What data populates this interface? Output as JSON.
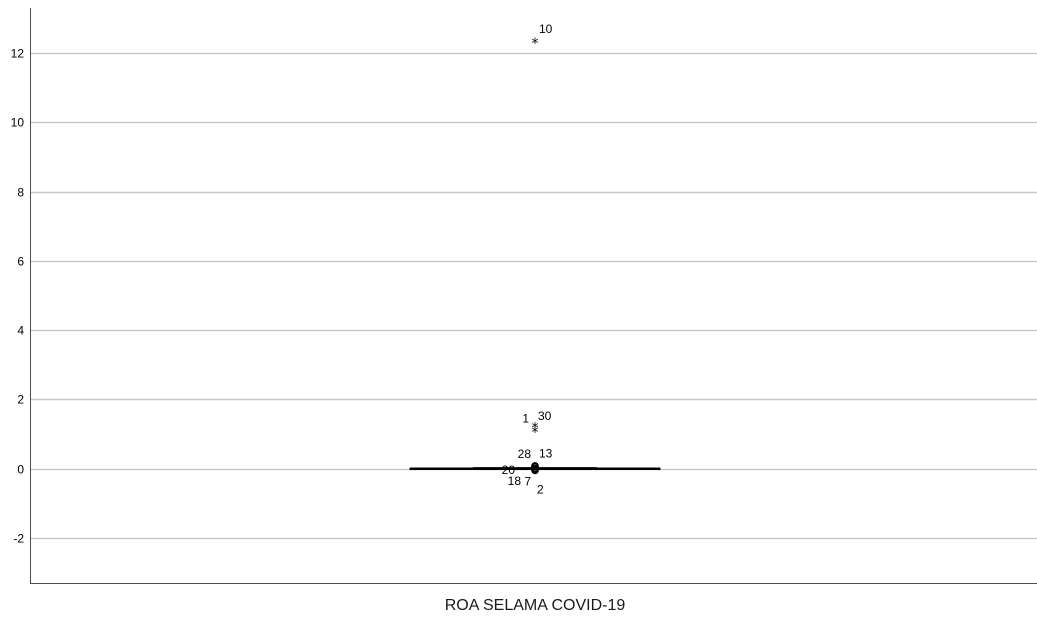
{
  "chart_data": {
    "type": "boxplot",
    "categories": [
      "ROA SELAMA COVID-19"
    ],
    "ylim": [
      -3.3,
      13.3
    ],
    "yticks": [
      -2,
      0,
      2,
      4,
      6,
      8,
      10,
      12
    ],
    "ytick_labels": [
      "-2",
      "0",
      "2",
      "4",
      "6",
      "8",
      "10",
      "12"
    ],
    "grid": true,
    "box": {
      "q1": -0.01,
      "median": 0.0,
      "q3": 0.01,
      "whisker_low": -0.02,
      "whisker_high": 0.03
    },
    "extreme_outliers": [
      {
        "case": "10",
        "value": 12.35
      },
      {
        "case": "1",
        "value": 1.25
      },
      {
        "case": "30",
        "value": 1.12
      }
    ],
    "outliers": [
      {
        "case": "28",
        "value": 0.08
      },
      {
        "case": "13",
        "value": 0.06
      },
      {
        "case": "20",
        "value": 0.02
      },
      {
        "case": "18",
        "value": -0.01
      },
      {
        "case": "7",
        "value": -0.03
      },
      {
        "case": "2",
        "value": -0.05
      }
    ],
    "colors": {
      "grid": "#c8c8c8",
      "axis": "#4d4d4d",
      "box": "#000000"
    }
  }
}
